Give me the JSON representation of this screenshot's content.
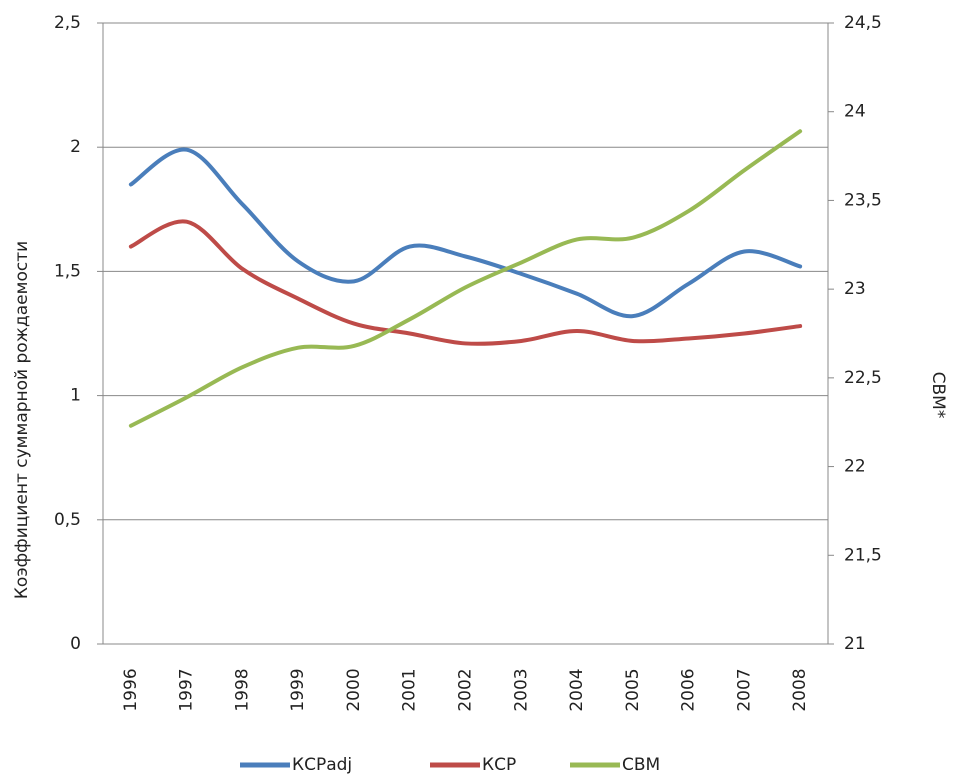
{
  "chart_data": {
    "type": "line",
    "categories": [
      "1996",
      "1997",
      "1998",
      "1999",
      "2000",
      "2001",
      "2002",
      "2003",
      "2004",
      "2005",
      "2006",
      "2007",
      "2008"
    ],
    "series": [
      {
        "name": "КСРadj",
        "color": "#4a7ebb",
        "values": [
          1.85,
          1.99,
          1.77,
          1.54,
          1.46,
          1.6,
          1.56,
          1.49,
          1.41,
          1.32,
          1.45,
          1.58,
          1.52
        ]
      },
      {
        "name": "КСР",
        "color": "#be4b48",
        "values": [
          1.6,
          1.7,
          1.51,
          1.39,
          1.29,
          1.25,
          1.21,
          1.22,
          1.26,
          1.22,
          1.23,
          1.25,
          1.28
        ]
      },
      {
        "name": "СВМ",
        "color": "#98b954",
        "axis": "y2",
        "values": [
          22.23,
          22.39,
          22.56,
          22.67,
          22.68,
          22.83,
          23.01,
          23.15,
          23.28,
          23.29,
          23.44,
          23.67,
          23.89
        ]
      }
    ],
    "y_label": "Коэффициент суммарной рождаемости",
    "y2_label": "СВМ*",
    "ylim": [
      0,
      2.5
    ],
    "yticks": [
      0,
      {
        "value": 0.5,
        "label": "0,5"
      },
      1,
      {
        "value": 1.5,
        "label": "1,5"
      },
      2,
      {
        "value": 2.5,
        "label": "2,5"
      }
    ],
    "y2lim": [
      21,
      24.5
    ],
    "y2ticks": [
      21,
      {
        "value": 21.5,
        "label": "21,5"
      },
      22,
      {
        "value": 22.5,
        "label": "22,5"
      },
      23,
      {
        "value": 23.5,
        "label": "23,5"
      },
      24,
      {
        "value": 24.5,
        "label": "24,5"
      }
    ],
    "grid": true,
    "legend": "bottom"
  }
}
